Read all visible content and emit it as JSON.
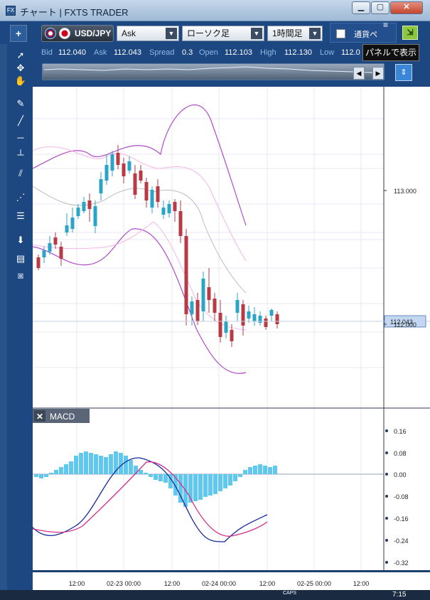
{
  "window": {
    "title": "チャート | FXTS TRADER",
    "app_icon": "FX",
    "minimize": "▁",
    "restore": "▢",
    "close": "✕"
  },
  "toolbar": {
    "add": "+",
    "pair": "USD/JPY",
    "price_type": "Ask",
    "chart_type": "ローソク足",
    "timeframe": "1時間足",
    "currency_pair_label": "通貨ペ",
    "tooltip": "パネルで表示"
  },
  "quotes": {
    "bid_label": "Bid",
    "bid": "112.040",
    "ask_label": "Ask",
    "ask": "112.043",
    "spread_label": "Spread",
    "spread": "0.3",
    "open_label": "Open",
    "open": "112.103",
    "high_label": "High",
    "high": "112.130",
    "low_label": "Low",
    "low": "112.0"
  },
  "price_axis": {
    "labels": [
      "113.000",
      "112.000"
    ],
    "current_price": "112.043"
  },
  "macd": {
    "panel_label": "MACD",
    "close": "✕",
    "axis_labels": [
      "0.16",
      "0.08",
      "0.00",
      "-0.08",
      "-0.16",
      "-0.24",
      "-0.32"
    ]
  },
  "time_axis": {
    "labels": [
      "12:00",
      "02-23 00:00",
      "12:00",
      "02-24 00:00",
      "12:00",
      "02-25 00:00",
      "12:00"
    ]
  },
  "sidebar_icons": [
    "select-arrow-icon",
    "crosshair-icon",
    "hand-pan-icon",
    "pen-icon",
    "line-icon",
    "horizontal-line-icon",
    "vertical-line-icon",
    "parallel-lines-icon",
    "fan-icon",
    "fibonacci-icon",
    "down-arrow-icon",
    "list-icon",
    "camera-icon"
  ],
  "taskbar": {
    "caps": "CAPS",
    "clock": "7:15"
  },
  "colors": {
    "bull": "#2aa5c8",
    "bear": "#b73a45",
    "bollinger_outer": "#b04cc9",
    "bollinger_mid": "#f2b5ea",
    "ma": "#bcbcbc",
    "macd_line": "#13299c",
    "signal_line": "#d22e8a",
    "histogram": "#5ec8ee"
  }
}
